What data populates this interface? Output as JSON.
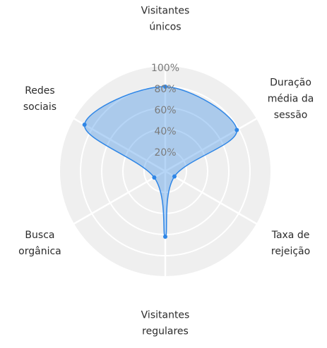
{
  "chart_data": {
    "type": "radar",
    "categories": [
      [
        "Visitantes",
        "únicos"
      ],
      [
        "Duração",
        "média da",
        "sessão"
      ],
      [
        "Taxa de",
        "rejeição"
      ],
      [
        "Visitantes",
        "regulares"
      ],
      [
        "Busca",
        "orgânica"
      ],
      [
        "Redes",
        "sociais"
      ]
    ],
    "series": [
      {
        "color": "#2f86e6",
        "values": [
          80,
          78,
          10,
          62,
          12,
          88
        ]
      }
    ],
    "rlim": [
      0,
      100
    ],
    "rticks": [
      {
        "value": 20,
        "label": "20%"
      },
      {
        "value": 40,
        "label": "40%"
      },
      {
        "value": 60,
        "label": "60%"
      },
      {
        "value": 80,
        "label": "80%"
      },
      {
        "value": 100,
        "label": "100%"
      }
    ],
    "grid": true
  }
}
